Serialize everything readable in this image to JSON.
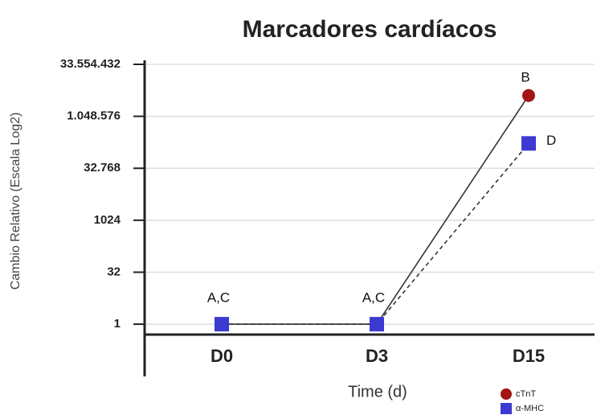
{
  "chart_data": {
    "type": "line",
    "title": "Marcadores cardíacos",
    "x_label": "Time (d)",
    "y_label": "Cambio Relativo (Escala Log2)",
    "categories": [
      "D0",
      "D3",
      "D15"
    ],
    "series": [
      {
        "name": "cTnT",
        "color": "#a31515",
        "marker": "circle",
        "dash": false,
        "values": [
          1,
          1,
          4194304
        ],
        "point_labels": [
          "A,C",
          "A,C",
          "B"
        ]
      },
      {
        "name": "α-MHC",
        "color": "#3b3bd1",
        "marker": "square",
        "dash": true,
        "values": [
          1,
          1,
          172000
        ],
        "point_labels": [
          null,
          null,
          "D"
        ]
      }
    ],
    "log_scale": "log2",
    "ylim": [
      0.5,
      33554432
    ],
    "yticks": [
      1,
      32,
      1024,
      {
        "value": 32768,
        "label": "32.768"
      },
      {
        "value": 1048576,
        "label": "1.048.576"
      },
      {
        "value": 33554432,
        "label": "33.554.432"
      }
    ],
    "grid": true
  }
}
